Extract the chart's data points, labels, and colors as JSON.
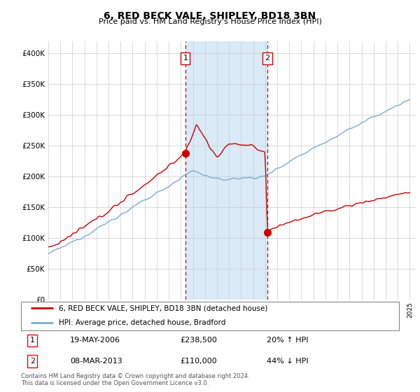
{
  "title": "6, RED BECK VALE, SHIPLEY, BD18 3BN",
  "subtitle": "Price paid vs. HM Land Registry's House Price Index (HPI)",
  "ylabel_ticks": [
    "£0",
    "£50K",
    "£100K",
    "£150K",
    "£200K",
    "£250K",
    "£300K",
    "£350K",
    "£400K"
  ],
  "ytick_values": [
    0,
    50000,
    100000,
    150000,
    200000,
    250000,
    300000,
    350000,
    400000
  ],
  "ylim": [
    0,
    420000
  ],
  "x_start_year": 1995,
  "x_end_year": 2025,
  "transaction1": {
    "date": "19-MAY-2006",
    "price": 238500,
    "label": "1",
    "pct": "20% ↑ HPI"
  },
  "transaction2": {
    "date": "08-MAR-2013",
    "price": 110000,
    "label": "2",
    "pct": "44% ↓ HPI"
  },
  "sale1_x": 2006.38,
  "sale2_x": 2013.18,
  "shaded_color": "#daeaf7",
  "dashed_color": "#cc0000",
  "red_line_color": "#cc0000",
  "blue_line_color": "#7aadcf",
  "legend_label1": "6, RED BECK VALE, SHIPLEY, BD18 3BN (detached house)",
  "legend_label2": "HPI: Average price, detached house, Bradford",
  "footer1": "Contains HM Land Registry data © Crown copyright and database right 2024.",
  "footer2": "This data is licensed under the Open Government Licence v3.0.",
  "background_color": "#ffffff"
}
